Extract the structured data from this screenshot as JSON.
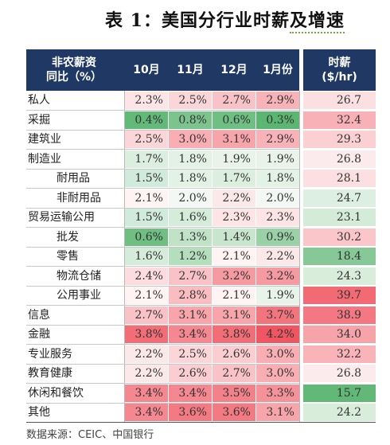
{
  "title": {
    "main": "表 1：美国分行业时薪",
    "accent": "及增速"
  },
  "header": {
    "label_line1": "非农薪资",
    "label_line2": "同比（%）",
    "months": [
      "10月",
      "11月",
      "12月",
      "1月份"
    ],
    "wage_line1": "时薪",
    "wage_line2": "($/hr)"
  },
  "rows": [
    {
      "label": "私人",
      "indent": 0,
      "values": [
        "2.3%",
        "2.5%",
        "2.7%",
        "2.9%"
      ],
      "colors": [
        "#fde5e6",
        "#fbd6d8",
        "#f9c2c6",
        "#f8b3b8"
      ],
      "wage": "26.7",
      "wage_color": "#fbdfe1"
    },
    {
      "label": "采掘",
      "indent": 0,
      "values": [
        "0.4%",
        "0.8%",
        "0.6%",
        "0.3%"
      ],
      "colors": [
        "#63b978",
        "#7cc38d",
        "#6fbe82",
        "#5cb672"
      ],
      "wage": "32.4",
      "wage_color": "#f8b1b6"
    },
    {
      "label": "建筑业",
      "indent": 0,
      "values": [
        "2.5%",
        "3.0%",
        "3.1%",
        "2.9%"
      ],
      "colors": [
        "#fbd6d8",
        "#f8aeb3",
        "#f7a4aa",
        "#f8b3b8"
      ],
      "wage": "29.3",
      "wage_color": "#fad0d3"
    },
    {
      "label": "制造业",
      "indent": 0,
      "values": [
        "1.7%",
        "1.8%",
        "1.9%",
        "1.9%"
      ],
      "colors": [
        "#dcefdf",
        "#e2f2e4",
        "#e8f4e9",
        "#e8f4e9"
      ],
      "wage": "26.8",
      "wage_color": "#fcebec"
    },
    {
      "label": "耐用品",
      "indent": 1,
      "values": [
        "1.5%",
        "1.8%",
        "1.7%",
        "1.8%"
      ],
      "colors": [
        "#d0eadb",
        "#e2f2e4",
        "#dcefdf",
        "#e2f2e4"
      ],
      "wage": "28.1",
      "wage_color": "#fbdfe1"
    },
    {
      "label": "非耐用品",
      "indent": 1,
      "values": [
        "2.1%",
        "2.0%",
        "2.2%",
        "2.0%"
      ],
      "colors": [
        "#fff3f3",
        "#f4f8f4",
        "#fbe9ea",
        "#f4f8f4"
      ],
      "wage": "24.7",
      "wage_color": "#ddefe0"
    },
    {
      "label": "贸易运输公用",
      "indent": 0,
      "values": [
        "1.5%",
        "1.6%",
        "2.3%",
        "2.3%"
      ],
      "colors": [
        "#d0eadb",
        "#d6ecda",
        "#fde5e6",
        "#fde5e6"
      ],
      "wage": "23.1",
      "wage_color": "#d4ebd8"
    },
    {
      "label": "批发",
      "indent": 1,
      "values": [
        "0.6%",
        "1.3%",
        "1.4%",
        "0.9%"
      ],
      "colors": [
        "#6fbe82",
        "#c0e3c7",
        "#c8e6cd",
        "#9ad1a6"
      ],
      "wage": "30.2",
      "wage_color": "#fac6ca"
    },
    {
      "label": "零售",
      "indent": 1,
      "values": [
        "1.6%",
        "1.2%",
        "2.1%",
        "2.2%"
      ],
      "colors": [
        "#d6ecda",
        "#b4dfbd",
        "#fff3f3",
        "#fbe9ea"
      ],
      "wage": "18.4",
      "wage_color": "#86c896"
    },
    {
      "label": "物流仓储",
      "indent": 1,
      "values": [
        "2.4%",
        "2.7%",
        "3.2%",
        "3.2%"
      ],
      "colors": [
        "#fcdcde",
        "#f9c2c6",
        "#f59aa1",
        "#f59aa1"
      ],
      "wage": "24.3",
      "wage_color": "#d8edda"
    },
    {
      "label": "公用事业",
      "indent": 1,
      "values": [
        "2.1%",
        "2.8%",
        "2.1%",
        "1.9%"
      ],
      "colors": [
        "#fff3f3",
        "#f9bdc1",
        "#fff3f3",
        "#e8f4e9"
      ],
      "wage": "39.7",
      "wage_color": "#f26a73"
    },
    {
      "label": "信息",
      "indent": 0,
      "values": [
        "2.7%",
        "3.1%",
        "3.1%",
        "3.7%"
      ],
      "colors": [
        "#f9c2c6",
        "#f7a4aa",
        "#f7a4aa",
        "#f2757e"
      ],
      "wage": "38.9",
      "wage_color": "#f37881"
    },
    {
      "label": "金融",
      "indent": 0,
      "values": [
        "3.8%",
        "3.4%",
        "3.8%",
        "4.2%"
      ],
      "colors": [
        "#f26d76",
        "#f4878f",
        "#f26d76",
        "#ef5661"
      ],
      "wage": "34.0",
      "wage_color": "#f6a3a9"
    },
    {
      "label": "专业服务",
      "indent": 0,
      "values": [
        "2.2%",
        "2.5%",
        "2.6%",
        "3.0%"
      ],
      "colors": [
        "#fbe9ea",
        "#fbd6d8",
        "#facdd0",
        "#f8aeb3"
      ],
      "wage": "32.2",
      "wage_color": "#f8b4b9"
    },
    {
      "label": "教育健康",
      "indent": 0,
      "values": [
        "2.2%",
        "2.6%",
        "2.7%",
        "3.0%"
      ],
      "colors": [
        "#fbe9ea",
        "#facdd0",
        "#f9c2c6",
        "#f8aeb3"
      ],
      "wage": "26.8",
      "wage_color": "#fcebec"
    },
    {
      "label": "休闲和餐饮",
      "indent": 0,
      "values": [
        "3.4%",
        "3.4%",
        "3.5%",
        "3.3%"
      ],
      "colors": [
        "#f4878f",
        "#f4878f",
        "#f38189",
        "#f59299"
      ],
      "wage": "15.7",
      "wage_color": "#62b877"
    },
    {
      "label": "其他",
      "indent": 0,
      "values": [
        "3.4%",
        "3.6%",
        "3.6%",
        "3.1%"
      ],
      "colors": [
        "#f4878f",
        "#f37a83",
        "#f37a83",
        "#f7a4aa"
      ],
      "wage": "24.2",
      "wage_color": "#d8edda"
    }
  ],
  "source": "数据来源：CEIC、中国银行"
}
